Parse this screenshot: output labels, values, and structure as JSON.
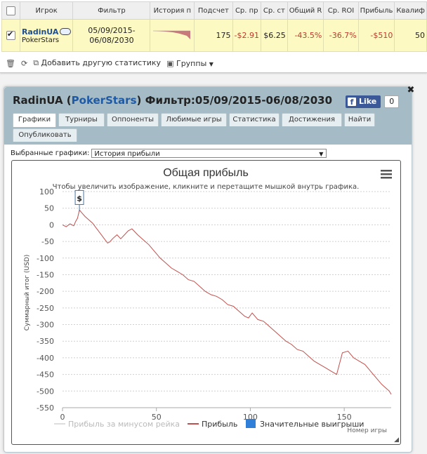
{
  "table": {
    "headers": [
      "Игрок",
      "Фильтр",
      "История п",
      "Подсчет",
      "Ср. пр",
      "Ср. ст",
      "Общий R",
      "Ср. ROI",
      "Прибыль",
      "Квалиф"
    ],
    "row": {
      "player": "RadinUA",
      "network": "PokerStars",
      "filter": "05/09/2015-\n06/08/2030",
      "count": "175",
      "avg_profit": "-$2.91",
      "avg_stake": "$6.25",
      "total_roi": "-43.5%",
      "avg_roi": "-36.7%",
      "profit": "-$510",
      "qualif": "50"
    }
  },
  "toolbar": {
    "add_stats": "Добавить другую статистику",
    "groups": "Группы"
  },
  "panel": {
    "player": "RadinUA",
    "network": "PokerStars",
    "filter_label": "Фильтр:05/09/2015-06/08/2030",
    "like": "Like",
    "like_count": "0",
    "tabs": [
      "Графики",
      "Турниры",
      "Оппоненты",
      "Любимые игры",
      "Статистика",
      "Достижения",
      "Найти",
      "Опубликовать"
    ],
    "select_label": "Выбранные графики:",
    "select_value": "История прибыли"
  },
  "chart_data": {
    "type": "line",
    "title": "Общая прибыль",
    "subtitle": "Чтобы увеличить изображение, кликните и перетащите мышкой внутрь графика.",
    "ylabel": "Суммарный итог (USD)",
    "xlabel": "Номер игры",
    "xlim": [
      0,
      175
    ],
    "ylim": [
      -550,
      100
    ],
    "x_ticks": [
      0,
      50,
      100,
      150
    ],
    "y_ticks": [
      100,
      50,
      0,
      -50,
      -100,
      -150,
      -200,
      -250,
      -300,
      -350,
      -400,
      -450,
      -500,
      -550
    ],
    "grid": true,
    "legend": [
      "Прибыль за минусом рейка",
      "Прибыль",
      "Значительные выигрыши"
    ],
    "legend_position": "bottom",
    "flag": {
      "x": 9,
      "y": 40,
      "text": "$"
    },
    "series": [
      {
        "name": "Прибыль",
        "color": "#c0504d",
        "x": [
          0,
          2,
          4,
          6,
          7,
          8,
          9,
          10,
          12,
          14,
          16,
          18,
          20,
          22,
          24,
          25,
          27,
          29,
          31,
          33,
          35,
          37,
          40,
          43,
          46,
          49,
          52,
          55,
          58,
          61,
          64,
          67,
          70,
          73,
          76,
          79,
          82,
          85,
          88,
          91,
          93,
          95,
          97,
          99,
          101,
          104,
          107,
          110,
          113,
          116,
          119,
          122,
          125,
          128,
          131,
          134,
          137,
          140,
          143,
          146,
          149,
          152,
          155,
          158,
          161,
          164,
          167,
          170,
          172,
          174,
          175
        ],
        "y": [
          0,
          -6,
          3,
          -3,
          10,
          20,
          45,
          38,
          25,
          15,
          5,
          -10,
          -25,
          -40,
          -55,
          -52,
          -40,
          -30,
          -42,
          -30,
          -18,
          -12,
          -30,
          -45,
          -60,
          -80,
          -100,
          -115,
          -130,
          -140,
          -150,
          -165,
          -170,
          -185,
          -200,
          -210,
          -215,
          -225,
          -240,
          -245,
          -255,
          -265,
          -275,
          -280,
          -265,
          -285,
          -290,
          -305,
          -320,
          -335,
          -350,
          -360,
          -375,
          -380,
          -395,
          -410,
          -420,
          -430,
          -440,
          -450,
          -385,
          -380,
          -400,
          -410,
          -420,
          -440,
          -460,
          -480,
          -490,
          -500,
          -510
        ]
      }
    ]
  }
}
